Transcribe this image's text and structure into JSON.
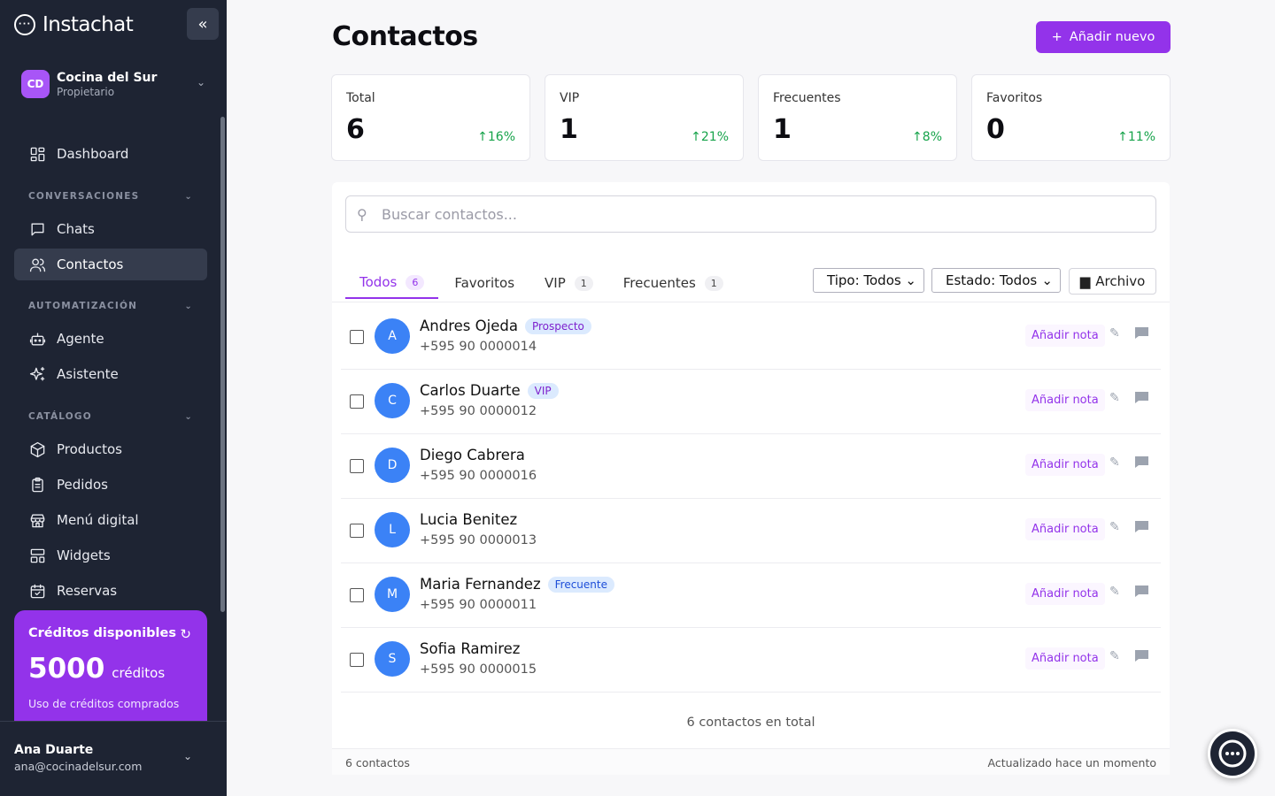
{
  "app": {
    "name": "Instachat",
    "logo_glyph": "···"
  },
  "org": {
    "initials": "CD",
    "name": "Cocina del Sur",
    "role": "Propietario"
  },
  "nav": {
    "dashboard": "Dashboard",
    "section_conversations": "CONVERSACIONES",
    "chats": "Chats",
    "contacts": "Contactos",
    "section_automation": "AUTOMATIZACIÓN",
    "agent": "Agente",
    "assistant": "Asistente",
    "section_catalog": "CATÁLOGO",
    "products": "Productos",
    "orders": "Pedidos",
    "digital_menu": "Menú digital",
    "widgets": "Widgets",
    "bookings": "Reservas"
  },
  "credits": {
    "title": "Créditos disponibles",
    "amount": "5000",
    "unit": "créditos",
    "subtitle": "Uso de créditos comprados"
  },
  "user": {
    "name": "Ana Duarte",
    "email": "ana@cocinadelsur.com"
  },
  "header": {
    "title": "Contactos",
    "add_button": "Añadir nuevo"
  },
  "stats": [
    {
      "label": "Total",
      "value": "6",
      "change": "16%"
    },
    {
      "label": "VIP",
      "value": "1",
      "change": "21%"
    },
    {
      "label": "Frecuentes",
      "value": "1",
      "change": "8%"
    },
    {
      "label": "Favoritos",
      "value": "0",
      "change": "11%"
    }
  ],
  "search": {
    "placeholder": "Buscar contactos..."
  },
  "tabs": [
    {
      "label": "Todos",
      "count": "6"
    },
    {
      "label": "Favoritos"
    },
    {
      "label": "VIP",
      "count": "1"
    },
    {
      "label": "Frecuentes",
      "count": "1"
    }
  ],
  "filters": {
    "type": "Tipo: Todos",
    "status": "Estado: Todos",
    "archive": "Archivo"
  },
  "contacts": [
    {
      "initial": "A",
      "name": "Andres Ojeda",
      "tag": "Prospecto",
      "phone": "+595 90 0000014"
    },
    {
      "initial": "C",
      "name": "Carlos Duarte",
      "tag": "VIP",
      "phone": "+595 90 0000012"
    },
    {
      "initial": "D",
      "name": "Diego Cabrera",
      "tag": "",
      "phone": "+595 90 0000016"
    },
    {
      "initial": "L",
      "name": "Lucia Benitez",
      "tag": "",
      "phone": "+595 90 0000013"
    },
    {
      "initial": "M",
      "name": "Maria Fernandez",
      "tag": "Frecuente",
      "phone": "+595 90 0000011"
    },
    {
      "initial": "S",
      "name": "Sofia Ramirez",
      "tag": "",
      "phone": "+595 90 0000015"
    }
  ],
  "row_action": "Añadir nota",
  "list": {
    "total_text": "6 contactos en total",
    "footer_left": "6 contactos",
    "footer_right": "Actualizado hace un momento"
  },
  "colors": {
    "accent": "#9333ea",
    "sidebar": "#1e2433",
    "avatar": "#3b82f6",
    "positive": "#16a34a"
  }
}
